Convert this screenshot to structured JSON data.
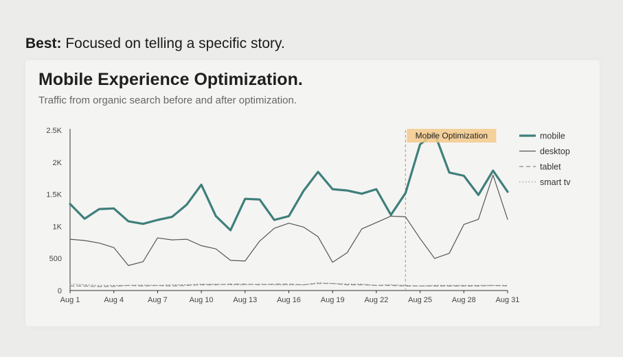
{
  "heading": {
    "lead": "Best:",
    "text": " Focused on telling a specific story."
  },
  "chart_data": {
    "type": "line",
    "title": "Mobile Experience Optimization.",
    "subtitle": "Traffic from organic search before and after optimization.",
    "x": [
      1,
      2,
      3,
      4,
      5,
      6,
      7,
      8,
      9,
      10,
      11,
      12,
      13,
      14,
      15,
      16,
      17,
      18,
      19,
      20,
      21,
      22,
      23,
      24,
      25,
      26,
      27,
      28,
      29,
      30,
      31
    ],
    "x_tick_labels": [
      "Aug 1",
      "Aug 4",
      "Aug 7",
      "Aug 10",
      "Aug 13",
      "Aug 16",
      "Aug 19",
      "Aug 22",
      "Aug 25",
      "Aug 28",
      "Aug 31"
    ],
    "x_tick_values": [
      1,
      4,
      7,
      10,
      13,
      16,
      19,
      22,
      25,
      28,
      31
    ],
    "y_ticks": [
      0,
      500,
      1000,
      1500,
      2000,
      2500
    ],
    "y_tick_labels": [
      "0",
      "500",
      "1K",
      "1.5K",
      "2K",
      "2.5K"
    ],
    "ylim": [
      0,
      2500
    ],
    "grid": false,
    "legend_position": "right",
    "series": [
      {
        "name": "mobile",
        "style": "solid-thick",
        "color": "#3f7f7a",
        "values": [
          1350,
          1120,
          1270,
          1280,
          1080,
          1040,
          1100,
          1150,
          1340,
          1650,
          1160,
          940,
          1430,
          1420,
          1100,
          1160,
          1550,
          1850,
          1580,
          1560,
          1510,
          1580,
          1180,
          1520,
          2280,
          2450,
          1840,
          1790,
          1490,
          1870,
          1540
        ]
      },
      {
        "name": "desktop",
        "style": "solid-thin",
        "color": "#555555",
        "values": [
          800,
          780,
          740,
          670,
          390,
          450,
          820,
          790,
          800,
          700,
          650,
          470,
          460,
          770,
          970,
          1050,
          990,
          840,
          440,
          590,
          960,
          1060,
          1160,
          1150,
          810,
          500,
          580,
          1030,
          1110,
          1800,
          1110
        ]
      },
      {
        "name": "tablet",
        "style": "dashed",
        "color": "#888888",
        "values": [
          70,
          70,
          60,
          65,
          80,
          70,
          80,
          70,
          80,
          90,
          90,
          100,
          100,
          90,
          100,
          100,
          90,
          110,
          110,
          90,
          90,
          80,
          80,
          70,
          70,
          70,
          70,
          70,
          70,
          80,
          70
        ]
      },
      {
        "name": "smart tv",
        "style": "dotted",
        "color": "#999999",
        "values": [
          100,
          90,
          80,
          80,
          80,
          85,
          80,
          90,
          90,
          100,
          100,
          90,
          90,
          100,
          90,
          90,
          90,
          120,
          110,
          100,
          100,
          80,
          90,
          80,
          70,
          80,
          80,
          80,
          80,
          80,
          80
        ]
      }
    ],
    "annotation": {
      "label": "Mobile Optimization",
      "x": 24,
      "color": "#f3c98a",
      "line_color": "#c9a85a"
    }
  }
}
